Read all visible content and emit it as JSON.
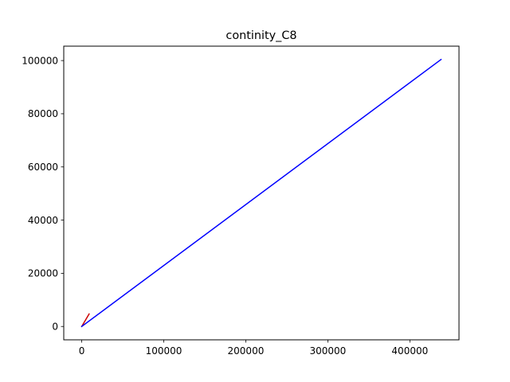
{
  "chart_data": {
    "type": "line",
    "title": "continity_C8",
    "xlabel": "",
    "ylabel": "",
    "xlim": [
      -21900,
      459900
    ],
    "ylim": [
      -5020,
      105420
    ],
    "xticks": [
      0,
      100000,
      200000,
      300000,
      400000
    ],
    "xtick_labels": [
      "0",
      "100000",
      "200000",
      "300000",
      "400000"
    ],
    "yticks": [
      0,
      20000,
      40000,
      60000,
      80000,
      100000
    ],
    "ytick_labels": [
      "0",
      "20000",
      "40000",
      "60000",
      "80000",
      "100000"
    ],
    "grid": false,
    "legend": "none",
    "series": [
      {
        "color": "#cc0000",
        "x": [
          0,
          9000
        ],
        "y": [
          0,
          4700
        ]
      },
      {
        "color": "#0000ff",
        "x": [
          0,
          438000
        ],
        "y": [
          0,
          100400
        ]
      }
    ]
  }
}
